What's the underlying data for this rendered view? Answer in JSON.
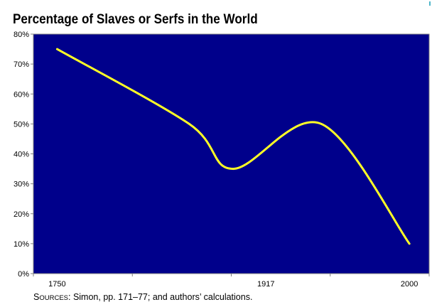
{
  "chart_data": {
    "type": "line",
    "title": "Percentage of Slaves or Serfs in the World",
    "xlabel": "",
    "ylabel": "",
    "x_tick_labels": [
      "1750",
      "1917",
      "2000"
    ],
    "y_tick_labels": [
      "0%",
      "10%",
      "20%",
      "30%",
      "40%",
      "50%",
      "60%",
      "70%",
      "80%"
    ],
    "ylim": [
      0,
      80
    ],
    "xlim": [
      0,
      4
    ],
    "series": [
      {
        "name": "Slaves or Serfs",
        "x": [
          0,
          1.5,
          2,
          3,
          4
        ],
        "y": [
          75,
          50,
          35,
          50,
          10
        ]
      }
    ],
    "colors": {
      "plot_background": "#00008b",
      "line": "#ffff26",
      "axis": "#808080"
    },
    "grid": false,
    "legend": "none"
  },
  "source_note": {
    "label_first_letter": "S",
    "label_rest": "OURCES",
    "text": ": Simon, pp. 171–77; and authors’ calculations."
  }
}
